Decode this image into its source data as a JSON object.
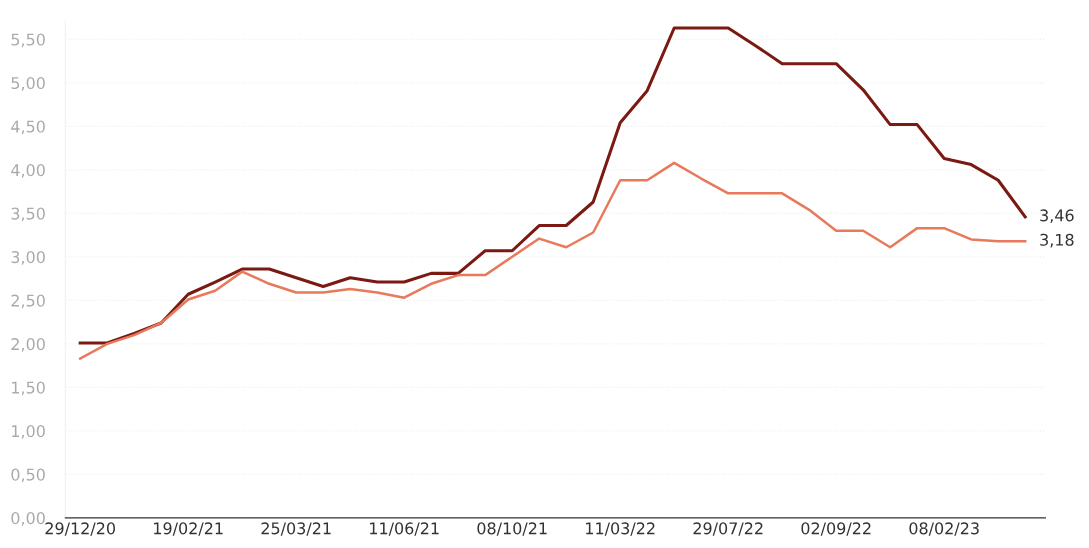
{
  "chart_data": {
    "type": "line",
    "categories": [
      "29/12/20",
      null,
      null,
      null,
      "19/02/21",
      null,
      null,
      null,
      "25/03/21",
      null,
      null,
      null,
      "11/06/21",
      null,
      null,
      null,
      "08/10/21",
      null,
      null,
      null,
      "11/03/22",
      null,
      null,
      null,
      "29/07/22",
      null,
      null,
      null,
      "02/09/22",
      null,
      null,
      null,
      "08/02/23",
      null,
      null,
      null
    ],
    "series": [
      {
        "color": "#7a1a12",
        "values": [
          2.01,
          2.01,
          2.12,
          2.24,
          2.57,
          2.71,
          2.86,
          2.86,
          2.76,
          2.66,
          2.76,
          2.71,
          2.71,
          2.81,
          2.81,
          3.07,
          3.07,
          3.36,
          3.36,
          3.63,
          4.54,
          4.91,
          5.63,
          5.63,
          5.63,
          5.43,
          5.22,
          5.22,
          5.22,
          4.92,
          4.52,
          4.52,
          4.13,
          4.06,
          3.88,
          3.46
        ]
      },
      {
        "color": "#e8795a",
        "values": [
          1.83,
          2.0,
          2.1,
          2.24,
          2.51,
          2.61,
          2.83,
          2.69,
          2.59,
          2.59,
          2.63,
          2.59,
          2.53,
          2.69,
          2.79,
          2.79,
          3.0,
          3.21,
          3.11,
          3.28,
          3.88,
          3.88,
          4.08,
          3.9,
          3.73,
          3.73,
          3.73,
          3.54,
          3.3,
          3.3,
          3.11,
          3.33,
          3.33,
          3.2,
          3.18,
          3.18
        ]
      }
    ],
    "ylim": [
      0,
      5.7
    ],
    "yticks": [
      {
        "value": 0,
        "label": "0,00"
      },
      {
        "value": 0.5,
        "label": "0,50"
      },
      {
        "value": 1,
        "label": "1,00"
      },
      {
        "value": 1.5,
        "label": "1,50"
      },
      {
        "value": 2,
        "label": "2,00"
      },
      {
        "value": 2.5,
        "label": "2,50"
      },
      {
        "value": 3,
        "label": "3,00"
      },
      {
        "value": 3.5,
        "label": "3,50"
      },
      {
        "value": 4,
        "label": "4,00"
      },
      {
        "value": 4.5,
        "label": "4,50"
      },
      {
        "value": 5,
        "label": "5,00"
      },
      {
        "value": 5.5,
        "label": "5,50"
      }
    ],
    "grid": "y",
    "marker": "none",
    "line_style": "solid",
    "annotations": [
      "3,46",
      "3,18"
    ]
  }
}
